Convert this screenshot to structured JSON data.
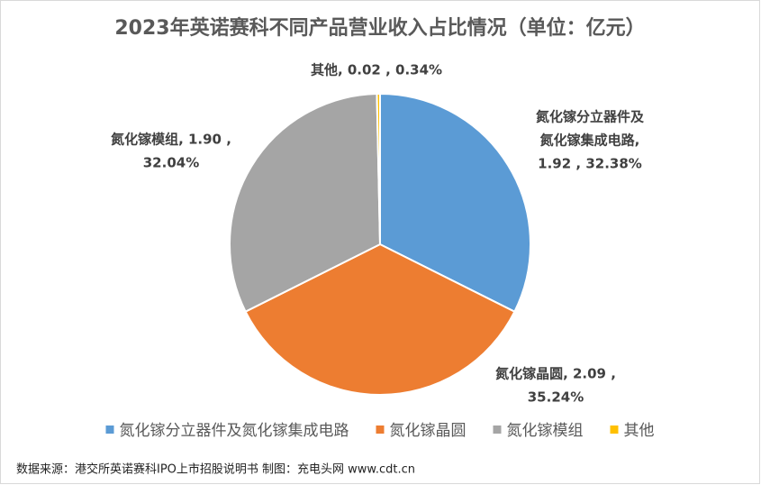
{
  "chart_data": {
    "type": "pie",
    "title": "2023年英诺赛科不同产品营业收入占比情况（单位：亿元）",
    "categories": [
      "氮化镓分立器件及氮化镓集成电路",
      "氮化镓晶圆",
      "氮化镓模组",
      "其他"
    ],
    "values": [
      1.92,
      2.09,
      1.9,
      0.02
    ],
    "colors": [
      "#5b9bd5",
      "#ed7d31",
      "#a5a5a5",
      "#ffc000"
    ],
    "data_labels": [
      [
        "氮化镓分立器件及",
        "氮化镓集成电路,",
        "1.92 , 32.38%"
      ],
      [
        "氮化镓晶圆, 2.09 ,",
        "35.24%"
      ],
      [
        "氮化镓模组, 1.90 ,",
        "32.04%"
      ],
      [
        "其他, 0.02 , 0.34%"
      ]
    ],
    "legend": "bottom",
    "source": "数据来源：港交所英诺赛科IPO上市招股说明书 制图：充电头网 www.cdt.cn"
  }
}
